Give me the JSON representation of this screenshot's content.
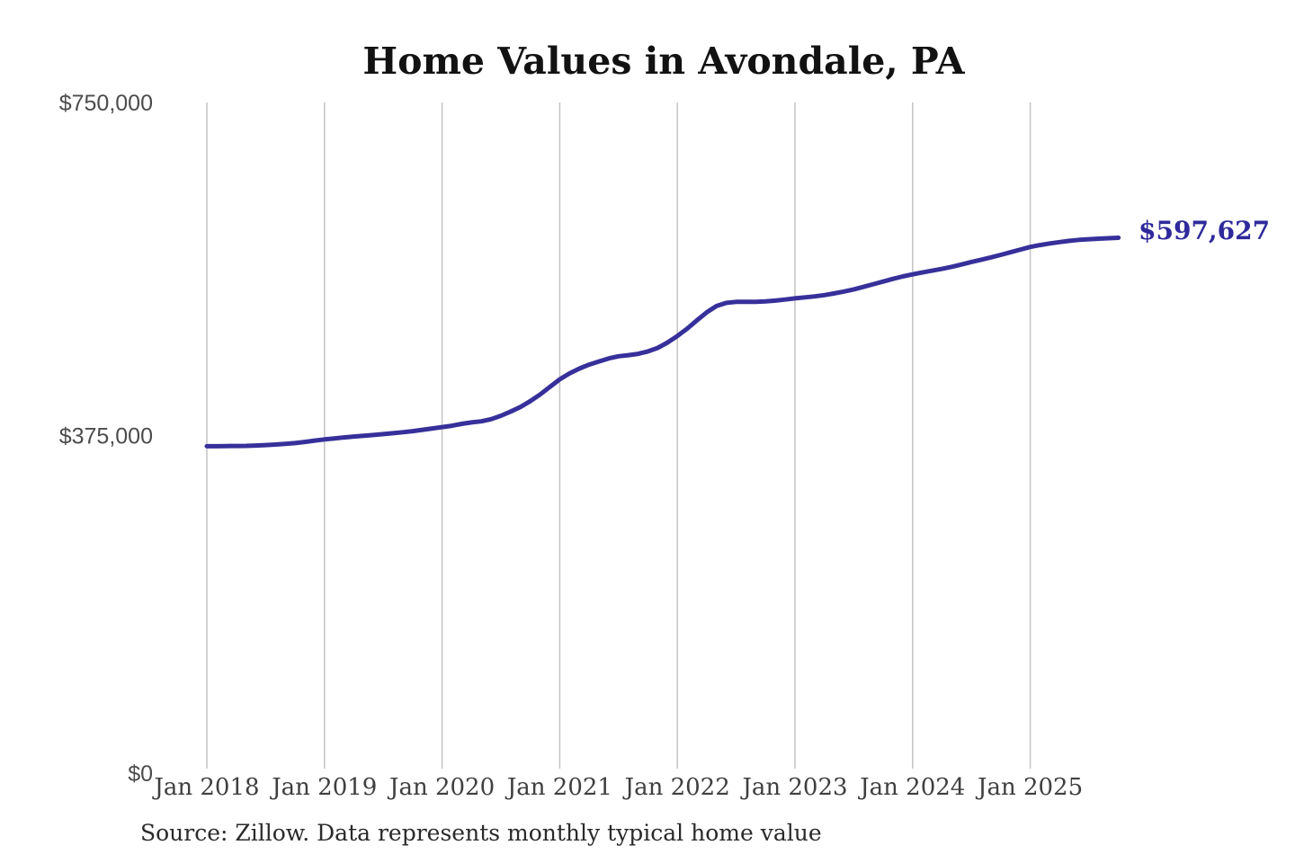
{
  "chart": {
    "title": "Home Values in Avondale, PA",
    "end_label": "$597,627",
    "source_note": "Source: Zillow. Data represents monthly typical home value"
  },
  "chart_data": {
    "type": "line",
    "title": "Home Values in Avondale, PA",
    "series_name": "Monthly typical home value",
    "x_unit": "month",
    "x_start": "2018-01",
    "x_end": "2025-10",
    "x_ticks": [
      "Jan 2018",
      "Jan 2019",
      "Jan 2020",
      "Jan 2021",
      "Jan 2022",
      "Jan 2023",
      "Jan 2024",
      "Jan 2025"
    ],
    "y_ticks": [
      {
        "label": "$0",
        "value": 0
      },
      {
        "label": "$375,000",
        "value": 375000
      },
      {
        "label": "$750,000",
        "value": 750000
      }
    ],
    "ylim": [
      0,
      750000
    ],
    "grid": "vertical-only",
    "legend": "none",
    "line_color": "#37309a",
    "grid_color": "#c4c4c4",
    "end_label_color": "#2f2a9b",
    "last_value": 597627,
    "values": [
      363000,
      363000,
      363200,
      363300,
      363400,
      363800,
      364300,
      364900,
      365600,
      366500,
      367800,
      369300,
      370600,
      371700,
      372900,
      373900,
      374700,
      375600,
      376600,
      377600,
      378700,
      380000,
      381500,
      383000,
      384500,
      386000,
      388200,
      389800,
      391000,
      393400,
      397300,
      402000,
      407200,
      413800,
      421300,
      429800,
      438300,
      444900,
      450400,
      454900,
      458400,
      461800,
      464300,
      465500,
      467000,
      469700,
      473700,
      479800,
      487000,
      495300,
      504800,
      513800,
      520800,
      524400,
      525500,
      525600,
      525600,
      526000,
      526900,
      528100,
      529500,
      530600,
      531700,
      533100,
      535000,
      537100,
      539600,
      542400,
      545400,
      548400,
      551400,
      554100,
      556500,
      558600,
      560600,
      562700,
      565000,
      567600,
      570400,
      573000,
      575600,
      578400,
      581400,
      584400,
      587300,
      589500,
      591300,
      592800,
      594200,
      595300,
      596100,
      596700,
      597200,
      597627
    ]
  }
}
